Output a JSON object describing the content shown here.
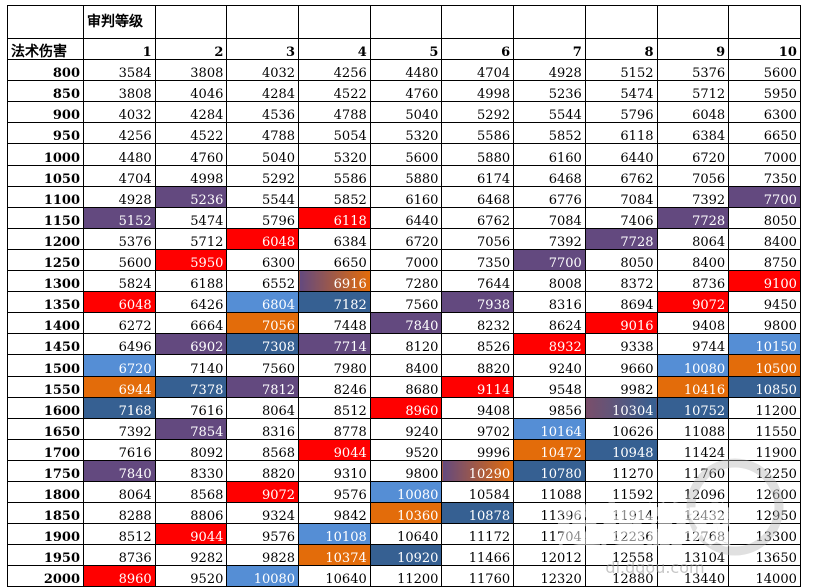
{
  "sheet": {
    "title": "审判等级",
    "row_header": "法术伤害",
    "levels": [
      "1",
      "2",
      "3",
      "4",
      "5",
      "6",
      "7",
      "8",
      "9",
      "10"
    ],
    "rows": [
      {
        "damage": "800",
        "values": [
          "3584",
          "3808",
          "4032",
          "4256",
          "4480",
          "4704",
          "4928",
          "5152",
          "5376",
          "5600"
        ]
      },
      {
        "damage": "850",
        "values": [
          "3808",
          "4046",
          "4284",
          "4522",
          "4760",
          "4998",
          "5236",
          "5474",
          "5712",
          "5950"
        ]
      },
      {
        "damage": "900",
        "values": [
          "4032",
          "4284",
          "4536",
          "4788",
          "5040",
          "5292",
          "5544",
          "5796",
          "6048",
          "6300"
        ]
      },
      {
        "damage": "950",
        "values": [
          "4256",
          "4522",
          "4788",
          "5054",
          "5320",
          "5586",
          "5852",
          "6118",
          "6384",
          "6650"
        ]
      },
      {
        "damage": "1000",
        "values": [
          "4480",
          "4760",
          "5040",
          "5320",
          "5600",
          "5880",
          "6160",
          "6440",
          "6720",
          "7000"
        ]
      },
      {
        "damage": "1050",
        "values": [
          "4704",
          "4998",
          "5292",
          "5586",
          "5880",
          "6174",
          "6468",
          "6762",
          "7056",
          "7350"
        ]
      },
      {
        "damage": "1100",
        "values": [
          "4928",
          "5236",
          "5544",
          "5852",
          "6160",
          "6468",
          "6776",
          "7084",
          "7392",
          "7700"
        ]
      },
      {
        "damage": "1150",
        "values": [
          "5152",
          "5474",
          "5796",
          "6118",
          "6440",
          "6762",
          "7084",
          "7406",
          "7728",
          "8050"
        ]
      },
      {
        "damage": "1200",
        "values": [
          "5376",
          "5712",
          "6048",
          "6384",
          "6720",
          "7056",
          "7392",
          "7728",
          "8064",
          "8400"
        ]
      },
      {
        "damage": "1250",
        "values": [
          "5600",
          "5950",
          "6300",
          "6650",
          "7000",
          "7350",
          "7700",
          "8050",
          "8400",
          "8750"
        ]
      },
      {
        "damage": "1300",
        "values": [
          "5824",
          "6188",
          "6552",
          "6916",
          "7280",
          "7644",
          "8008",
          "8372",
          "8736",
          "9100"
        ]
      },
      {
        "damage": "1350",
        "values": [
          "6048",
          "6426",
          "6804",
          "7182",
          "7560",
          "7938",
          "8316",
          "8694",
          "9072",
          "9450"
        ]
      },
      {
        "damage": "1400",
        "values": [
          "6272",
          "6664",
          "7056",
          "7448",
          "7840",
          "8232",
          "8624",
          "9016",
          "9408",
          "9800"
        ]
      },
      {
        "damage": "1450",
        "values": [
          "6496",
          "6902",
          "7308",
          "7714",
          "8120",
          "8526",
          "8932",
          "9338",
          "9744",
          "10150"
        ]
      },
      {
        "damage": "1500",
        "values": [
          "6720",
          "7140",
          "7560",
          "7980",
          "8400",
          "8820",
          "9240",
          "9660",
          "10080",
          "10500"
        ]
      },
      {
        "damage": "1550",
        "values": [
          "6944",
          "7378",
          "7812",
          "8246",
          "8680",
          "9114",
          "9548",
          "9982",
          "10416",
          "10850"
        ]
      },
      {
        "damage": "1600",
        "values": [
          "7168",
          "7616",
          "8064",
          "8512",
          "8960",
          "9408",
          "9856",
          "10304",
          "10752",
          "11200"
        ]
      },
      {
        "damage": "1650",
        "values": [
          "7392",
          "7854",
          "8316",
          "8778",
          "9240",
          "9702",
          "10164",
          "10626",
          "11088",
          "11550"
        ]
      },
      {
        "damage": "1700",
        "values": [
          "7616",
          "8092",
          "8568",
          "9044",
          "9520",
          "9996",
          "10472",
          "10948",
          "11424",
          "11900"
        ]
      },
      {
        "damage": "1750",
        "values": [
          "7840",
          "8330",
          "8820",
          "9310",
          "9800",
          "10290",
          "10780",
          "11270",
          "11760",
          "12250"
        ]
      },
      {
        "damage": "1800",
        "values": [
          "8064",
          "8568",
          "9072",
          "9576",
          "10080",
          "10584",
          "11088",
          "11592",
          "12096",
          "12600"
        ]
      },
      {
        "damage": "1850",
        "values": [
          "8288",
          "8806",
          "9324",
          "9842",
          "10360",
          "10878",
          "11396",
          "11914",
          "12432",
          "12950"
        ]
      },
      {
        "damage": "1900",
        "values": [
          "8512",
          "9044",
          "9576",
          "10108",
          "10640",
          "11172",
          "11704",
          "12236",
          "12768",
          "13300"
        ]
      },
      {
        "damage": "1950",
        "values": [
          "8736",
          "9282",
          "9828",
          "10374",
          "10920",
          "11466",
          "12012",
          "12558",
          "13104",
          "13650"
        ]
      },
      {
        "damage": "2000",
        "values": [
          "8960",
          "9520",
          "10080",
          "10640",
          "11200",
          "11760",
          "12320",
          "12880",
          "13440",
          "14000"
        ]
      }
    ]
  },
  "colors": {
    "purple": "#63497f",
    "red": "#ff0000",
    "orange": "#e36c0a",
    "blue": "#558ed5",
    "navy": "#366092",
    "orange_blend": "linear-gradient(90deg,#63497f,#e36c0a)",
    "red_blend": "linear-gradient(90deg,#ff0000,#e36c0a)",
    "navy_blend": "linear-gradient(90deg,#7b4e6a,#366092)"
  },
  "highlights": [
    {
      "r": 6,
      "c": 1,
      "color": "purple"
    },
    {
      "r": 6,
      "c": 9,
      "color": "purple"
    },
    {
      "r": 7,
      "c": 0,
      "color": "purple"
    },
    {
      "r": 7,
      "c": 3,
      "color": "red"
    },
    {
      "r": 7,
      "c": 8,
      "color": "purple"
    },
    {
      "r": 8,
      "c": 2,
      "color": "red"
    },
    {
      "r": 8,
      "c": 7,
      "color": "purple"
    },
    {
      "r": 9,
      "c": 1,
      "color": "red"
    },
    {
      "r": 9,
      "c": 6,
      "color": "purple"
    },
    {
      "r": 10,
      "c": 3,
      "color": "orange_blend"
    },
    {
      "r": 10,
      "c": 9,
      "color": "red"
    },
    {
      "r": 11,
      "c": 0,
      "color": "red"
    },
    {
      "r": 11,
      "c": 2,
      "color": "blue"
    },
    {
      "r": 11,
      "c": 3,
      "color": "navy"
    },
    {
      "r": 11,
      "c": 5,
      "color": "purple"
    },
    {
      "r": 11,
      "c": 8,
      "color": "red"
    },
    {
      "r": 12,
      "c": 2,
      "color": "orange"
    },
    {
      "r": 12,
      "c": 4,
      "color": "purple"
    },
    {
      "r": 12,
      "c": 7,
      "color": "red"
    },
    {
      "r": 13,
      "c": 1,
      "color": "purple"
    },
    {
      "r": 13,
      "c": 2,
      "color": "navy"
    },
    {
      "r": 13,
      "c": 3,
      "color": "purple"
    },
    {
      "r": 13,
      "c": 6,
      "color": "red"
    },
    {
      "r": 13,
      "c": 9,
      "color": "blue"
    },
    {
      "r": 14,
      "c": 0,
      "color": "blue"
    },
    {
      "r": 14,
      "c": 8,
      "color": "blue"
    },
    {
      "r": 14,
      "c": 9,
      "color": "orange"
    },
    {
      "r": 15,
      "c": 0,
      "color": "orange"
    },
    {
      "r": 15,
      "c": 1,
      "color": "navy"
    },
    {
      "r": 15,
      "c": 2,
      "color": "purple"
    },
    {
      "r": 15,
      "c": 5,
      "color": "red"
    },
    {
      "r": 15,
      "c": 8,
      "color": "orange"
    },
    {
      "r": 15,
      "c": 9,
      "color": "navy"
    },
    {
      "r": 16,
      "c": 0,
      "color": "navy"
    },
    {
      "r": 16,
      "c": 4,
      "color": "red"
    },
    {
      "r": 16,
      "c": 7,
      "color": "navy_blend"
    },
    {
      "r": 16,
      "c": 8,
      "color": "navy"
    },
    {
      "r": 17,
      "c": 1,
      "color": "purple"
    },
    {
      "r": 17,
      "c": 6,
      "color": "blue"
    },
    {
      "r": 18,
      "c": 3,
      "color": "red"
    },
    {
      "r": 18,
      "c": 6,
      "color": "orange"
    },
    {
      "r": 18,
      "c": 7,
      "color": "navy"
    },
    {
      "r": 19,
      "c": 0,
      "color": "purple"
    },
    {
      "r": 19,
      "c": 5,
      "color": "orange_blend"
    },
    {
      "r": 19,
      "c": 6,
      "color": "navy"
    },
    {
      "r": 20,
      "c": 2,
      "color": "red"
    },
    {
      "r": 20,
      "c": 4,
      "color": "blue"
    },
    {
      "r": 21,
      "c": 4,
      "color": "orange"
    },
    {
      "r": 21,
      "c": 5,
      "color": "navy"
    },
    {
      "r": 22,
      "c": 1,
      "color": "red"
    },
    {
      "r": 22,
      "c": 3,
      "color": "blue"
    },
    {
      "r": 23,
      "c": 3,
      "color": "orange"
    },
    {
      "r": 23,
      "c": 4,
      "color": "navy"
    },
    {
      "r": 24,
      "c": 0,
      "color": "red"
    },
    {
      "r": 24,
      "c": 2,
      "color": "blue"
    }
  ],
  "watermark": {
    "text": "逗趣游戏",
    "url": "dl.dqou.com"
  }
}
